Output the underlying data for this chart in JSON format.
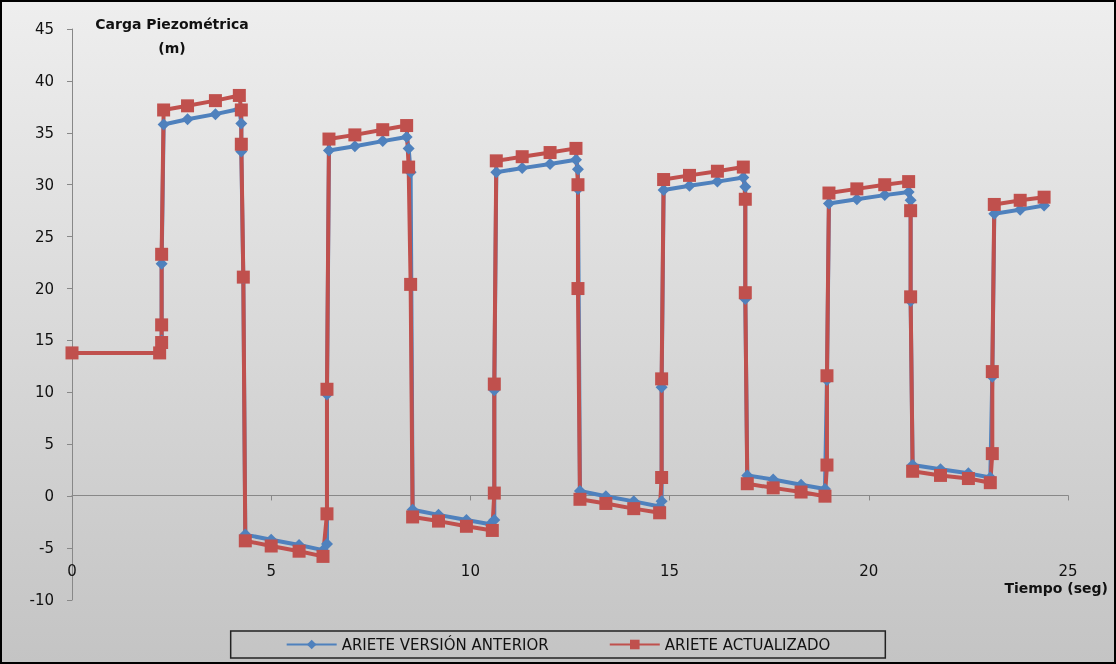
{
  "chart_data": {
    "type": "line",
    "ylabel": "Carga Piezométrica\n(m)",
    "xlabel": "Tiempo (seg)",
    "xlim": [
      0,
      25
    ],
    "xticks": [
      0,
      5,
      10,
      15,
      20,
      25
    ],
    "ylim": [
      -10,
      45
    ],
    "yticks": [
      -10,
      -5,
      0,
      5,
      10,
      15,
      20,
      25,
      30,
      35,
      40,
      45
    ],
    "legend": "bottom",
    "line_style": "solid",
    "series": [
      {
        "name": "ARIETE VERSIÓN ANTERIOR",
        "color": "#4f81bd",
        "marker": "diamond",
        "x": [
          0,
          2.2,
          2.25,
          2.25,
          2.3,
          2.9,
          3.6,
          4.2,
          4.25,
          4.25,
          4.3,
          4.35,
          5.0,
          5.7,
          6.3,
          6.4,
          6.4,
          6.45,
          7.1,
          7.8,
          8.4,
          8.45,
          8.5,
          8.55,
          9.2,
          9.9,
          10.5,
          10.6,
          10.6,
          10.65,
          11.3,
          12,
          12.65,
          12.7,
          12.7,
          12.75,
          13.4,
          14.1,
          14.75,
          14.8,
          14.8,
          14.85,
          15.5,
          16.2,
          16.85,
          16.9,
          16.9,
          16.95,
          17.6,
          18.3,
          18.9,
          18.95,
          19,
          19.7,
          20.4,
          21,
          21.05,
          21.05,
          21.1,
          21.8,
          22.5,
          23.05,
          23.1,
          23.15,
          23.8,
          24.4
        ],
        "values": [
          13.8,
          13.8,
          15,
          22.4,
          35.8,
          36.3,
          36.8,
          37.3,
          35.9,
          33.2,
          21,
          -3.7,
          -4.2,
          -4.7,
          -5.2,
          -4.6,
          9.8,
          33.3,
          33.7,
          34.2,
          34.6,
          33.5,
          31.2,
          -1.3,
          -1.8,
          -2.3,
          -2.7,
          -2.3,
          10.2,
          31.2,
          31.6,
          32,
          32.4,
          31.5,
          29.6,
          0.5,
          0,
          -0.5,
          -1,
          -0.5,
          10.5,
          29.5,
          29.9,
          30.3,
          30.7,
          29.8,
          19,
          2,
          1.6,
          1.1,
          0.7,
          11.2,
          28.2,
          28.6,
          29,
          29.3,
          28.5,
          18.8,
          3,
          2.6,
          2.2,
          1.8,
          11.5,
          27.2,
          27.6,
          28
        ]
      },
      {
        "name": "ARIETE ACTUALIZADO",
        "color": "#c0504d",
        "marker": "square",
        "x": [
          0,
          2.2,
          2.25,
          2.25,
          2.25,
          2.3,
          2.9,
          3.6,
          4.2,
          4.25,
          4.25,
          4.3,
          4.35,
          5.0,
          5.7,
          6.3,
          6.4,
          6.4,
          6.45,
          7.1,
          7.8,
          8.4,
          8.45,
          8.5,
          8.55,
          9.2,
          9.9,
          10.55,
          10.6,
          10.6,
          10.65,
          11.3,
          12,
          12.65,
          12.7,
          12.7,
          12.75,
          13.4,
          14.1,
          14.75,
          14.8,
          14.8,
          14.85,
          15.5,
          16.2,
          16.85,
          16.9,
          16.9,
          16.95,
          17.6,
          18.3,
          18.9,
          18.95,
          18.95,
          19,
          19.7,
          20.4,
          21,
          21.05,
          21.05,
          21.1,
          21.8,
          22.5,
          23.05,
          23.1,
          23.1,
          23.15,
          23.8,
          24.4
        ],
        "values": [
          13.8,
          13.8,
          14.8,
          16.5,
          23.3,
          37.2,
          37.6,
          38.1,
          38.6,
          37.2,
          33.9,
          21.1,
          -4.3,
          -4.8,
          -5.3,
          -5.8,
          -1.7,
          10.3,
          34.4,
          34.8,
          35.3,
          35.7,
          31.7,
          20.4,
          -2.0,
          -2.4,
          -2.9,
          -3.3,
          0.3,
          10.8,
          32.3,
          32.7,
          33.1,
          33.5,
          30,
          20,
          -0.3,
          -0.7,
          -1.2,
          -1.6,
          1.8,
          11.3,
          30.5,
          30.9,
          31.3,
          31.7,
          28.6,
          19.6,
          1.2,
          0.8,
          0.4,
          0,
          3.0,
          11.6,
          29.2,
          29.6,
          30,
          30.3,
          27.5,
          19.2,
          2.4,
          2.0,
          1.7,
          1.3,
          4.1,
          12,
          28.1,
          28.5,
          28.8
        ]
      }
    ]
  }
}
